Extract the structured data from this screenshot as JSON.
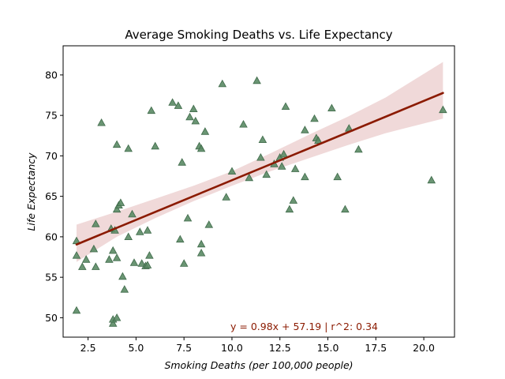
{
  "chart_data": {
    "type": "scatter",
    "title": "Average Smoking Deaths vs. Life Expectancy",
    "xlabel": "Smoking Deaths (per 100,000 people)",
    "ylabel": "Life Expectancy",
    "xlim": [
      1.2,
      21.6
    ],
    "ylim": [
      47.6,
      83.6
    ],
    "xticks": [
      2.5,
      5.0,
      7.5,
      10.0,
      12.5,
      15.0,
      17.5,
      20.0
    ],
    "xtick_labels": [
      "2.5",
      "5.0",
      "7.5",
      "10.0",
      "12.5",
      "15.0",
      "17.5",
      "20.0"
    ],
    "yticks": [
      50,
      55,
      60,
      65,
      70,
      75,
      80
    ],
    "ytick_labels": [
      "50",
      "55",
      "60",
      "65",
      "70",
      "75",
      "80"
    ],
    "grid": false,
    "marker": "triangle",
    "colors": {
      "points": "#5a8a64",
      "point_edge": "#3f6a4a",
      "regression_line": "#8b1a00",
      "confidence_band": "#e8c4c4",
      "annotation": "#8b1a00"
    },
    "regression": {
      "slope": 0.98,
      "intercept": 57.19,
      "r_squared": 0.34,
      "x_range": [
        1.9,
        21.0
      ]
    },
    "confidence_band": {
      "x": [
        1.9,
        4,
        6,
        8,
        10,
        12,
        14,
        16,
        18,
        21
      ],
      "lower": [
        56.9,
        60.0,
        62.3,
        64.4,
        66.3,
        68.1,
        69.7,
        71.3,
        72.8,
        74.6
      ],
      "upper": [
        61.5,
        63.1,
        64.7,
        66.3,
        68.1,
        70.3,
        72.6,
        74.8,
        77.2,
        81.6
      ]
    },
    "annotation": "y = 0.98x + 57.19 | r^2: 0.34",
    "points": [
      [
        1.9,
        50.9
      ],
      [
        1.9,
        59.5
      ],
      [
        1.9,
        57.7
      ],
      [
        2.2,
        56.3
      ],
      [
        2.4,
        57.2
      ],
      [
        2.8,
        58.5
      ],
      [
        2.9,
        61.6
      ],
      [
        2.9,
        56.3
      ],
      [
        3.2,
        74.1
      ],
      [
        3.6,
        57.2
      ],
      [
        3.7,
        61.0
      ],
      [
        3.8,
        58.3
      ],
      [
        3.8,
        49.3
      ],
      [
        3.8,
        49.8
      ],
      [
        3.9,
        60.8
      ],
      [
        4.0,
        57.4
      ],
      [
        4.0,
        63.4
      ],
      [
        4.0,
        71.4
      ],
      [
        4.0,
        50.0
      ],
      [
        4.1,
        63.9
      ],
      [
        4.2,
        64.2
      ],
      [
        4.3,
        55.1
      ],
      [
        4.4,
        53.5
      ],
      [
        4.6,
        70.9
      ],
      [
        4.6,
        60.0
      ],
      [
        4.8,
        62.8
      ],
      [
        4.9,
        56.8
      ],
      [
        5.2,
        60.6
      ],
      [
        5.3,
        56.7
      ],
      [
        5.5,
        56.4
      ],
      [
        5.6,
        56.5
      ],
      [
        5.6,
        60.8
      ],
      [
        5.7,
        57.7
      ],
      [
        5.8,
        75.6
      ],
      [
        6.0,
        71.2
      ],
      [
        6.9,
        76.6
      ],
      [
        7.2,
        76.2
      ],
      [
        7.3,
        59.7
      ],
      [
        7.4,
        69.2
      ],
      [
        7.5,
        56.7
      ],
      [
        7.7,
        62.3
      ],
      [
        7.8,
        74.8
      ],
      [
        8.0,
        75.8
      ],
      [
        8.1,
        74.3
      ],
      [
        8.3,
        71.2
      ],
      [
        8.4,
        70.9
      ],
      [
        8.4,
        58.0
      ],
      [
        8.4,
        59.1
      ],
      [
        8.6,
        73.0
      ],
      [
        8.8,
        61.5
      ],
      [
        9.5,
        78.9
      ],
      [
        9.7,
        64.9
      ],
      [
        10.0,
        68.1
      ],
      [
        10.6,
        73.9
      ],
      [
        10.9,
        67.3
      ],
      [
        11.3,
        79.3
      ],
      [
        11.5,
        69.8
      ],
      [
        11.6,
        72.0
      ],
      [
        11.8,
        67.7
      ],
      [
        12.2,
        69.0
      ],
      [
        12.5,
        69.8
      ],
      [
        12.6,
        68.7
      ],
      [
        12.7,
        70.2
      ],
      [
        12.8,
        76.1
      ],
      [
        13.0,
        63.4
      ],
      [
        13.2,
        64.5
      ],
      [
        13.3,
        68.4
      ],
      [
        13.8,
        67.4
      ],
      [
        13.8,
        73.2
      ],
      [
        14.3,
        74.6
      ],
      [
        14.4,
        72.2
      ],
      [
        14.5,
        71.9
      ],
      [
        15.2,
        75.9
      ],
      [
        15.5,
        67.4
      ],
      [
        15.9,
        63.4
      ],
      [
        16.1,
        73.4
      ],
      [
        16.6,
        70.8
      ],
      [
        20.4,
        67.0
      ],
      [
        21.0,
        75.7
      ]
    ]
  }
}
